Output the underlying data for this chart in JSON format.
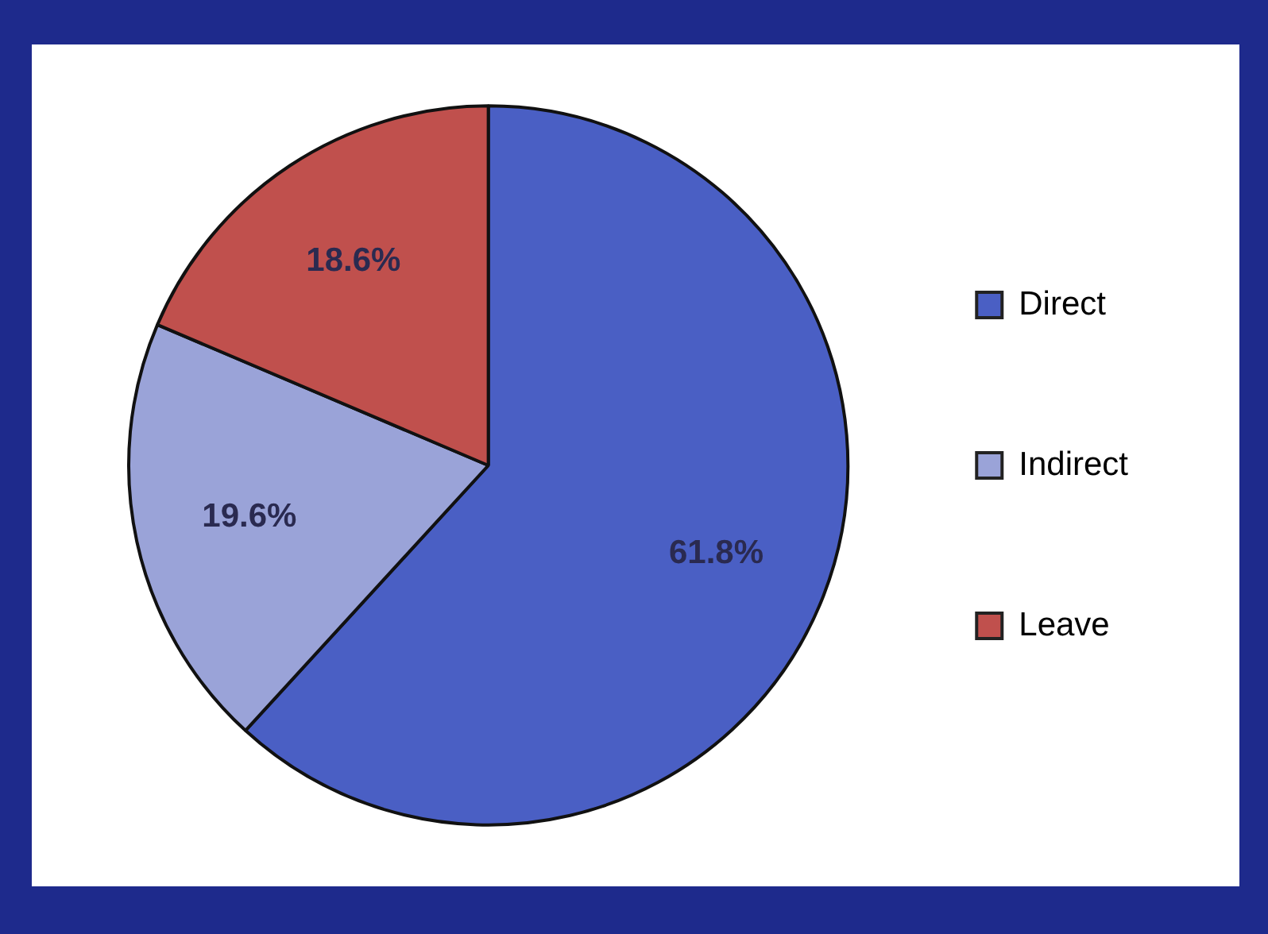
{
  "chart_data": {
    "type": "pie",
    "categories": [
      "Direct",
      "Indirect",
      "Leave"
    ],
    "values": [
      61.8,
      19.6,
      18.6
    ],
    "colors": [
      "#4a5fc4",
      "#9aa3d8",
      "#c0504d"
    ],
    "value_labels": [
      "61.8%",
      "19.6%",
      "18.6%"
    ],
    "legend": "right"
  }
}
